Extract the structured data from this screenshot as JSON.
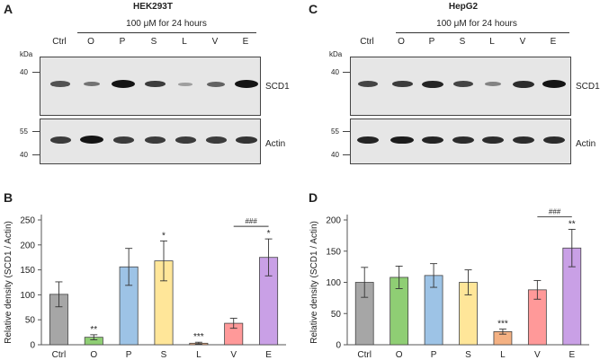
{
  "panels": [
    {
      "letter": "A",
      "cell_line": "HEK293T",
      "treatment": "100 μM for 24 hours",
      "lanes": [
        "Ctrl",
        "O",
        "P",
        "S",
        "L",
        "V",
        "E"
      ],
      "kda_label": "kDa",
      "blots": [
        {
          "protein": "SCD1",
          "markers": [
            "40"
          ],
          "intensities": [
            0.6,
            0.4,
            1.0,
            0.75,
            0.12,
            0.5,
            1.0
          ]
        },
        {
          "protein": "Actin",
          "markers": [
            "55",
            "40"
          ],
          "intensities": [
            0.75,
            1.0,
            0.75,
            0.75,
            0.75,
            0.75,
            0.8
          ]
        }
      ]
    },
    {
      "letter": "C",
      "cell_line": "HepG2",
      "treatment": "100 μM for 24 hours",
      "lanes": [
        "Ctrl",
        "O",
        "P",
        "S",
        "L",
        "V",
        "E"
      ],
      "kda_label": "kDa",
      "blots": [
        {
          "protein": "SCD1",
          "markers": [
            "40"
          ],
          "intensities": [
            0.7,
            0.75,
            0.9,
            0.7,
            0.3,
            0.85,
            1.0
          ]
        },
        {
          "protein": "Actin",
          "markers": [
            "55",
            "40"
          ],
          "intensities": [
            0.9,
            0.95,
            0.9,
            0.85,
            0.85,
            0.85,
            0.85
          ]
        }
      ]
    }
  ],
  "chart_data": [
    {
      "letter": "B",
      "type": "bar",
      "ylabel": "Relative density (SCD1 / Actin)",
      "ylim": [
        0,
        250
      ],
      "yticks": [
        0,
        50,
        100,
        150,
        200,
        250
      ],
      "categories": [
        "Ctrl",
        "O",
        "P",
        "S",
        "L",
        "V",
        "E"
      ],
      "values": [
        101,
        15,
        156,
        168,
        3,
        43,
        175
      ],
      "errors": [
        25,
        5,
        37,
        40,
        2,
        10,
        37
      ],
      "colors": [
        "#a6a6a6",
        "#8fce74",
        "#9dc3e6",
        "#ffe699",
        "#f4b183",
        "#ff9999",
        "#c9a0e6"
      ],
      "annotations": [
        "",
        "**",
        "",
        "*",
        "***",
        "",
        "*"
      ],
      "bracket": {
        "from": 5,
        "to": 6,
        "label": "###"
      }
    },
    {
      "letter": "D",
      "type": "bar",
      "ylabel": "Relative density (SCD1 / Actin)",
      "ylim": [
        0,
        200
      ],
      "yticks": [
        0,
        50,
        100,
        150,
        200
      ],
      "categories": [
        "Ctrl",
        "O",
        "P",
        "S",
        "L",
        "V",
        "E"
      ],
      "values": [
        100,
        108,
        111,
        100,
        21,
        88,
        155
      ],
      "errors": [
        24,
        18,
        19,
        20,
        4,
        15,
        30
      ],
      "colors": [
        "#a6a6a6",
        "#8fce74",
        "#9dc3e6",
        "#ffe699",
        "#f4b183",
        "#ff9999",
        "#c9a0e6"
      ],
      "annotations": [
        "",
        "",
        "",
        "",
        "***",
        "",
        "**"
      ],
      "bracket": {
        "from": 5,
        "to": 6,
        "label": "###"
      }
    }
  ]
}
